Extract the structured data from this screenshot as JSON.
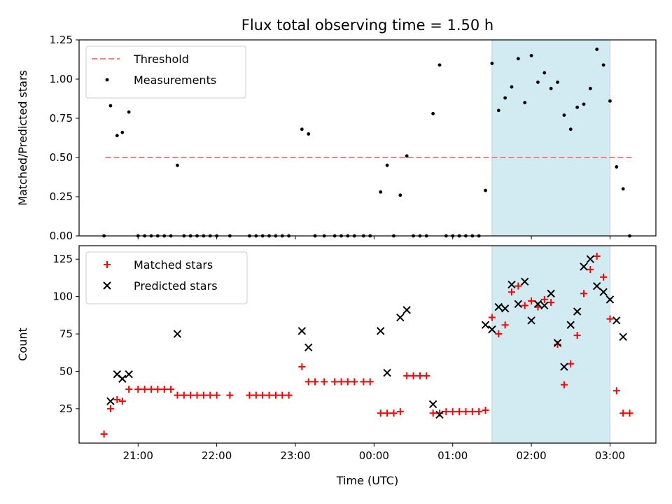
{
  "chart_data": [
    {
      "type": "scatter",
      "title": "Flux total observing time = 1.50 h",
      "xlabel": "",
      "ylabel": "Matched/Predicted stars",
      "x_unit": "time (UTC), 20:00 on day 1 to 04:00 on day 2",
      "xlim": [
        "20:15",
        "03:35"
      ],
      "ylim": [
        0,
        1.25
      ],
      "yticks": [
        "0.00",
        "0.25",
        "0.50",
        "0.75",
        "1.00",
        "1.25"
      ],
      "xticks": [
        "21:00",
        "22:00",
        "23:00",
        "00:00",
        "01:00",
        "02:00",
        "03:00"
      ],
      "show_xtick_labels": false,
      "highlight": {
        "from": "01:30",
        "to": "03:00",
        "color": "#add8e6"
      },
      "legend": {
        "location": "upper-left",
        "entries": [
          "Threshold",
          "Measurements"
        ]
      },
      "series": [
        {
          "name": "Threshold",
          "kind": "dashed-line",
          "color": "#ff7f7f",
          "points": [
            [
              "20:35",
              0.5
            ],
            [
              "03:17",
              0.5
            ]
          ]
        },
        {
          "name": "Measurements",
          "kind": "dot",
          "color": "#000000",
          "points": [
            [
              "20:34",
              0.0
            ],
            [
              "20:39",
              0.83
            ],
            [
              "20:44",
              0.64
            ],
            [
              "20:48",
              0.66
            ],
            [
              "20:53",
              0.79
            ],
            [
              "21:00",
              0.0
            ],
            [
              "21:05",
              0.0
            ],
            [
              "21:10",
              0.0
            ],
            [
              "21:15",
              0.0
            ],
            [
              "21:20",
              0.0
            ],
            [
              "21:25",
              0.0
            ],
            [
              "21:30",
              0.45
            ],
            [
              "21:35",
              0.0
            ],
            [
              "21:40",
              0.0
            ],
            [
              "21:45",
              0.0
            ],
            [
              "21:50",
              0.0
            ],
            [
              "21:55",
              0.0
            ],
            [
              "22:00",
              0.0
            ],
            [
              "22:10",
              0.0
            ],
            [
              "22:25",
              0.0
            ],
            [
              "22:30",
              0.0
            ],
            [
              "22:35",
              0.0
            ],
            [
              "22:40",
              0.0
            ],
            [
              "22:45",
              0.0
            ],
            [
              "22:50",
              0.0
            ],
            [
              "22:55",
              0.0
            ],
            [
              "23:05",
              0.68
            ],
            [
              "23:10",
              0.65
            ],
            [
              "23:15",
              0.0
            ],
            [
              "23:22",
              0.0
            ],
            [
              "23:30",
              0.0
            ],
            [
              "23:35",
              0.0
            ],
            [
              "23:40",
              0.0
            ],
            [
              "23:45",
              0.0
            ],
            [
              "23:52",
              0.0
            ],
            [
              "23:57",
              0.0
            ],
            [
              "00:05",
              0.28
            ],
            [
              "00:10",
              0.45
            ],
            [
              "00:15",
              0.0
            ],
            [
              "00:20",
              0.26
            ],
            [
              "00:25",
              0.51
            ],
            [
              "00:30",
              0.0
            ],
            [
              "00:35",
              0.0
            ],
            [
              "00:40",
              0.0
            ],
            [
              "00:45",
              0.78
            ],
            [
              "00:50",
              1.09
            ],
            [
              "00:55",
              0.0
            ],
            [
              "01:00",
              0.0
            ],
            [
              "01:05",
              0.0
            ],
            [
              "01:10",
              0.0
            ],
            [
              "01:15",
              0.0
            ],
            [
              "01:20",
              0.0
            ],
            [
              "01:25",
              0.29
            ],
            [
              "01:30",
              1.1
            ],
            [
              "01:35",
              0.8
            ],
            [
              "01:40",
              0.88
            ],
            [
              "01:45",
              0.95
            ],
            [
              "01:50",
              1.13
            ],
            [
              "01:55",
              0.85
            ],
            [
              "02:00",
              1.15
            ],
            [
              "02:05",
              0.98
            ],
            [
              "02:10",
              1.04
            ],
            [
              "02:15",
              0.94
            ],
            [
              "02:20",
              0.98
            ],
            [
              "02:25",
              0.77
            ],
            [
              "02:30",
              0.68
            ],
            [
              "02:35",
              0.82
            ],
            [
              "02:40",
              0.84
            ],
            [
              "02:45",
              0.94
            ],
            [
              "02:50",
              1.19
            ],
            [
              "02:55",
              1.09
            ],
            [
              "03:00",
              0.86
            ],
            [
              "03:05",
              0.44
            ],
            [
              "03:10",
              0.3
            ],
            [
              "03:15",
              0.0
            ]
          ]
        }
      ]
    },
    {
      "type": "scatter",
      "title": "",
      "xlabel": "Time (UTC)",
      "ylabel": "Count",
      "x_unit": "time (UTC), 20:00 on day 1 to 04:00 on day 2",
      "xlim": [
        "20:15",
        "03:35"
      ],
      "ylim": [
        2,
        134
      ],
      "yticks": [
        "25",
        "50",
        "75",
        "100",
        "125"
      ],
      "xticks": [
        "21:00",
        "22:00",
        "23:00",
        "00:00",
        "01:00",
        "02:00",
        "03:00"
      ],
      "show_xtick_labels": true,
      "highlight": {
        "from": "01:30",
        "to": "03:00",
        "color": "#add8e6"
      },
      "legend": {
        "location": "upper-left",
        "entries": [
          "Matched stars",
          "Predicted stars"
        ]
      },
      "series": [
        {
          "name": "Matched stars",
          "kind": "plus",
          "color": "#ff0000",
          "points": [
            [
              "20:34",
              8
            ],
            [
              "20:39",
              25
            ],
            [
              "20:44",
              31
            ],
            [
              "20:48",
              30
            ],
            [
              "20:53",
              38
            ],
            [
              "21:00",
              38
            ],
            [
              "21:05",
              38
            ],
            [
              "21:10",
              38
            ],
            [
              "21:15",
              38
            ],
            [
              "21:20",
              38
            ],
            [
              "21:25",
              38
            ],
            [
              "21:30",
              34
            ],
            [
              "21:35",
              34
            ],
            [
              "21:40",
              34
            ],
            [
              "21:45",
              34
            ],
            [
              "21:50",
              34
            ],
            [
              "21:55",
              34
            ],
            [
              "22:00",
              34
            ],
            [
              "22:10",
              34
            ],
            [
              "22:25",
              34
            ],
            [
              "22:30",
              34
            ],
            [
              "22:35",
              34
            ],
            [
              "22:40",
              34
            ],
            [
              "22:45",
              34
            ],
            [
              "22:50",
              34
            ],
            [
              "22:55",
              34
            ],
            [
              "23:05",
              53
            ],
            [
              "23:10",
              43
            ],
            [
              "23:15",
              43
            ],
            [
              "23:22",
              43
            ],
            [
              "23:30",
              43
            ],
            [
              "23:35",
              43
            ],
            [
              "23:40",
              43
            ],
            [
              "23:45",
              43
            ],
            [
              "23:52",
              43
            ],
            [
              "23:57",
              43
            ],
            [
              "00:05",
              22
            ],
            [
              "00:10",
              22
            ],
            [
              "00:15",
              22
            ],
            [
              "00:20",
              23
            ],
            [
              "00:25",
              47
            ],
            [
              "00:30",
              47
            ],
            [
              "00:35",
              47
            ],
            [
              "00:40",
              47
            ],
            [
              "00:45",
              22
            ],
            [
              "00:50",
              22
            ],
            [
              "00:55",
              23
            ],
            [
              "01:00",
              23
            ],
            [
              "01:05",
              23
            ],
            [
              "01:10",
              23
            ],
            [
              "01:15",
              23
            ],
            [
              "01:20",
              23
            ],
            [
              "01:25",
              24
            ],
            [
              "01:30",
              86
            ],
            [
              "01:35",
              75
            ],
            [
              "01:40",
              81
            ],
            [
              "01:45",
              103
            ],
            [
              "01:50",
              107
            ],
            [
              "01:55",
              94
            ],
            [
              "02:00",
              97
            ],
            [
              "02:05",
              93
            ],
            [
              "02:10",
              98
            ],
            [
              "02:15",
              96
            ],
            [
              "02:20",
              68
            ],
            [
              "02:25",
              41
            ],
            [
              "02:30",
              55
            ],
            [
              "02:35",
              74
            ],
            [
              "02:40",
              102
            ],
            [
              "02:45",
              118
            ],
            [
              "02:50",
              127
            ],
            [
              "02:55",
              113
            ],
            [
              "03:00",
              85
            ],
            [
              "03:05",
              37
            ],
            [
              "03:10",
              22
            ],
            [
              "03:15",
              22
            ]
          ]
        },
        {
          "name": "Predicted stars",
          "kind": "cross",
          "color": "#000000",
          "points": [
            [
              "20:39",
              30
            ],
            [
              "20:44",
              48
            ],
            [
              "20:48",
              45
            ],
            [
              "20:53",
              48
            ],
            [
              "21:30",
              75
            ],
            [
              "23:05",
              77
            ],
            [
              "23:10",
              66
            ],
            [
              "00:05",
              77
            ],
            [
              "00:10",
              49
            ],
            [
              "00:20",
              86
            ],
            [
              "00:25",
              91
            ],
            [
              "00:45",
              28
            ],
            [
              "00:50",
              21
            ],
            [
              "01:25",
              81
            ],
            [
              "01:30",
              78
            ],
            [
              "01:35",
              93
            ],
            [
              "01:40",
              92
            ],
            [
              "01:45",
              108
            ],
            [
              "01:50",
              95
            ],
            [
              "01:55",
              110
            ],
            [
              "02:00",
              84
            ],
            [
              "02:05",
              95
            ],
            [
              "02:10",
              94
            ],
            [
              "02:15",
              102
            ],
            [
              "02:20",
              69
            ],
            [
              "02:25",
              53
            ],
            [
              "02:30",
              81
            ],
            [
              "02:35",
              90
            ],
            [
              "02:40",
              120
            ],
            [
              "02:45",
              125
            ],
            [
              "02:50",
              107
            ],
            [
              "02:55",
              103
            ],
            [
              "03:00",
              98
            ],
            [
              "03:05",
              84
            ],
            [
              "03:10",
              73
            ]
          ]
        }
      ]
    }
  ]
}
